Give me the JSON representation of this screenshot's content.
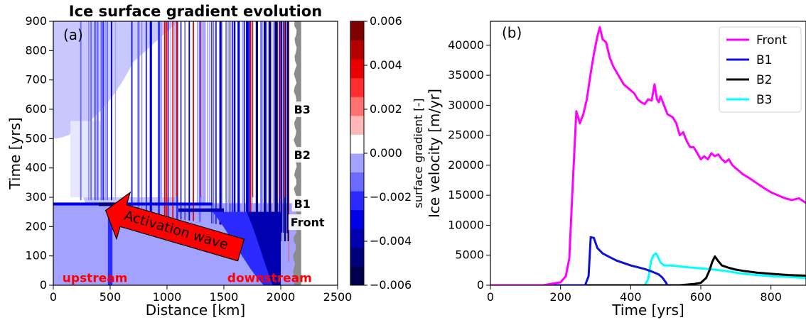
{
  "chart_data": [
    {
      "type": "heatmap",
      "panel_label": "(a)",
      "title": "Ice surface gradient evolution",
      "xlabel": "Distance [km]",
      "ylabel": "Time [yrs]",
      "xlim": [
        0,
        2500
      ],
      "ylim": [
        0,
        900
      ],
      "xticks": [
        0,
        500,
        1000,
        1500,
        2000,
        2500
      ],
      "yticks": [
        0,
        100,
        200,
        300,
        400,
        500,
        600,
        700,
        800,
        900
      ],
      "colorbar": {
        "label": "surface gradient [-]",
        "range": [
          -0.006,
          0.006
        ],
        "ticks": [
          -0.006,
          -0.004,
          -0.002,
          0.0,
          0.002,
          0.004,
          0.006
        ],
        "tick_labels": [
          "−0.006",
          "−0.004",
          "−0.002",
          "0.000",
          "0.002",
          "0.004",
          "0.006"
        ],
        "colors": [
          "#00004d",
          "#00007a",
          "#0000b0",
          "#0000e6",
          "#2b2bff",
          "#6b6bff",
          "#a3a3ff",
          "#ffffff",
          "#ffb8b8",
          "#ff7070",
          "#ff2d2d",
          "#e60000",
          "#b50000",
          "#7f0000"
        ]
      },
      "line_labels": [
        {
          "text": "B3",
          "x": 2110,
          "y": 600,
          "color": "#000000"
        },
        {
          "text": "B2",
          "x": 2110,
          "y": 445,
          "color": "#00e5ee"
        },
        {
          "text": "B1",
          "x": 2110,
          "y": 278,
          "color": "#1010d8"
        },
        {
          "text": "Front",
          "x": 2080,
          "y": 215,
          "color": "#ff00ff"
        }
      ],
      "annotations": [
        {
          "text": "upstream",
          "x": 80,
          "y": 25
        },
        {
          "text": "downstream",
          "x": 1530,
          "y": 25
        },
        {
          "text": "Activation wave",
          "tail": [
            1650,
            120
          ],
          "head": [
            460,
            255
          ]
        }
      ]
    },
    {
      "type": "line",
      "panel_label": "(b)",
      "xlabel": "Time [yrs]",
      "ylabel": "Ice velocity [m/yr]",
      "xlim": [
        0,
        900
      ],
      "ylim": [
        0,
        44000
      ],
      "xticks": [
        0,
        200,
        400,
        600,
        800
      ],
      "yticks": [
        0,
        5000,
        10000,
        15000,
        20000,
        25000,
        30000,
        35000,
        40000
      ],
      "legend": "top-right",
      "series": [
        {
          "name": "Front",
          "color": "#ff00ff",
          "x": [
            0,
            150,
            200,
            215,
            225,
            235,
            245,
            255,
            265,
            275,
            285,
            295,
            305,
            312,
            320,
            330,
            340,
            350,
            360,
            370,
            380,
            390,
            400,
            410,
            420,
            430,
            440,
            450,
            460,
            468,
            475,
            480,
            485,
            495,
            505,
            520,
            530,
            540,
            550,
            560,
            570,
            580,
            590,
            600,
            610,
            620,
            630,
            640,
            650,
            660,
            670,
            680,
            690,
            700,
            710,
            720,
            740,
            760,
            780,
            800,
            820,
            840,
            860,
            880,
            900
          ],
          "y": [
            0,
            0,
            500,
            1500,
            4500,
            17000,
            29000,
            27000,
            28500,
            31000,
            35000,
            38500,
            41500,
            43000,
            41000,
            40500,
            38000,
            36500,
            35500,
            34500,
            33500,
            33000,
            32500,
            32000,
            31000,
            30500,
            30200,
            31000,
            30800,
            33500,
            31000,
            30500,
            31500,
            30000,
            28500,
            28000,
            27000,
            25000,
            25500,
            24000,
            23000,
            23000,
            22000,
            21000,
            21500,
            21000,
            22000,
            21500,
            21800,
            21000,
            20500,
            21000,
            20000,
            19500,
            19000,
            18500,
            17800,
            17000,
            16200,
            15500,
            15000,
            14500,
            14200,
            14500,
            13700
          ]
        },
        {
          "name": "B1",
          "color": "#1010d8",
          "x": [
            0,
            270,
            280,
            286,
            295,
            305,
            320,
            340,
            360,
            380,
            400,
            420,
            440,
            460,
            480,
            490,
            500,
            505
          ],
          "y": [
            0,
            0,
            1500,
            8000,
            7900,
            6200,
            5300,
            4700,
            4100,
            3700,
            3300,
            3000,
            2700,
            2300,
            1800,
            1300,
            500,
            0
          ]
        },
        {
          "name": "B2",
          "color": "#000000",
          "x": [
            0,
            540,
            580,
            600,
            615,
            625,
            632,
            640,
            650,
            660,
            680,
            700,
            720,
            760,
            800,
            850,
            900
          ],
          "y": [
            0,
            0,
            200,
            400,
            1200,
            2500,
            3800,
            4800,
            4000,
            3300,
            2900,
            2600,
            2400,
            2100,
            1900,
            1700,
            1600
          ]
        },
        {
          "name": "B3",
          "color": "#00ffff",
          "x": [
            0,
            440,
            450,
            458,
            465,
            472,
            478,
            485,
            495,
            510,
            530,
            560,
            600,
            640,
            680,
            720,
            760,
            800,
            850,
            900
          ],
          "y": [
            0,
            0,
            1000,
            4000,
            5000,
            5300,
            4700,
            3800,
            3300,
            3300,
            3200,
            3000,
            2800,
            2600,
            2300,
            1900,
            1700,
            1500,
            1400,
            1200
          ]
        }
      ]
    }
  ]
}
